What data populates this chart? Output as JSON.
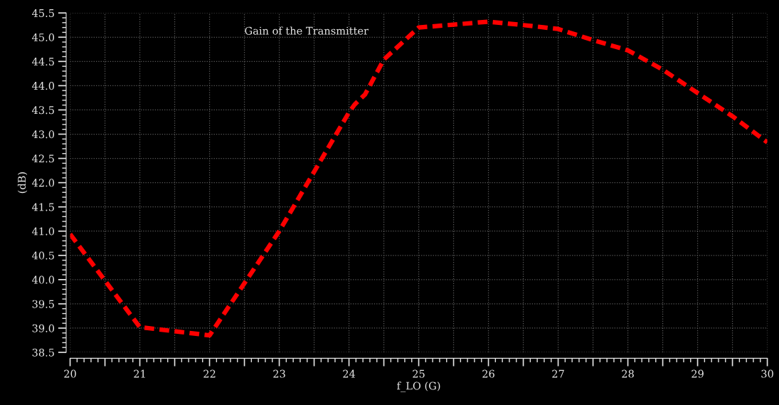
{
  "chart_data": {
    "type": "line",
    "title": "Gain of the Transmitter",
    "xlabel": "f_LO (G)",
    "ylabel": "(dB)",
    "series": [
      {
        "color": "#ff0000",
        "x": [
          20,
          21,
          22,
          23,
          24,
          24.08,
          24.23,
          24.5,
          25,
          25.5,
          26,
          26.5,
          27,
          27.5,
          28,
          28.5,
          29,
          29.5,
          30
        ],
        "values": [
          40.94,
          39.02,
          38.85,
          41.0,
          43.45,
          43.61,
          43.82,
          44.54,
          45.2,
          45.26,
          45.32,
          45.25,
          45.17,
          44.94,
          44.73,
          44.33,
          43.85,
          43.37,
          42.83
        ]
      }
    ],
    "xlim": [
      20,
      30
    ],
    "ylim": [
      38.5,
      45.5
    ],
    "xticks": [
      20,
      {
        "value": 20.5,
        "label": null
      },
      21,
      {
        "value": 21.5,
        "label": null
      },
      22,
      {
        "value": 22.5,
        "label": null
      },
      23,
      {
        "value": 23.5,
        "label": null
      },
      24,
      {
        "value": 24.5,
        "label": null
      },
      25,
      {
        "value": 25.5,
        "label": null
      },
      26,
      {
        "value": 26.5,
        "label": null
      },
      27,
      {
        "value": 27.5,
        "label": null
      },
      28,
      {
        "value": 28.5,
        "label": null
      },
      29,
      {
        "value": 29.5,
        "label": null
      },
      30
    ],
    "yticks": [
      {
        "value": 38.5,
        "label": "38.5"
      },
      {
        "value": 39.0,
        "label": "39.0"
      },
      {
        "value": 39.5,
        "label": "39.5"
      },
      {
        "value": 40.0,
        "label": "40.0"
      },
      {
        "value": 40.5,
        "label": "40.5"
      },
      {
        "value": 41.0,
        "label": "41.0"
      },
      {
        "value": 41.5,
        "label": "41.5"
      },
      {
        "value": 42.0,
        "label": "42.0"
      },
      {
        "value": 42.5,
        "label": "42.5"
      },
      {
        "value": 43.0,
        "label": "43.0"
      },
      {
        "value": 43.5,
        "label": "43.5"
      },
      {
        "value": 44.0,
        "label": "44.0"
      },
      {
        "value": 44.5,
        "label": "44.5"
      },
      {
        "value": 45.0,
        "label": "45.0"
      },
      {
        "value": 45.5,
        "label": "45.5"
      }
    ],
    "grid": true,
    "line_style": "dashed",
    "marker": "none"
  }
}
